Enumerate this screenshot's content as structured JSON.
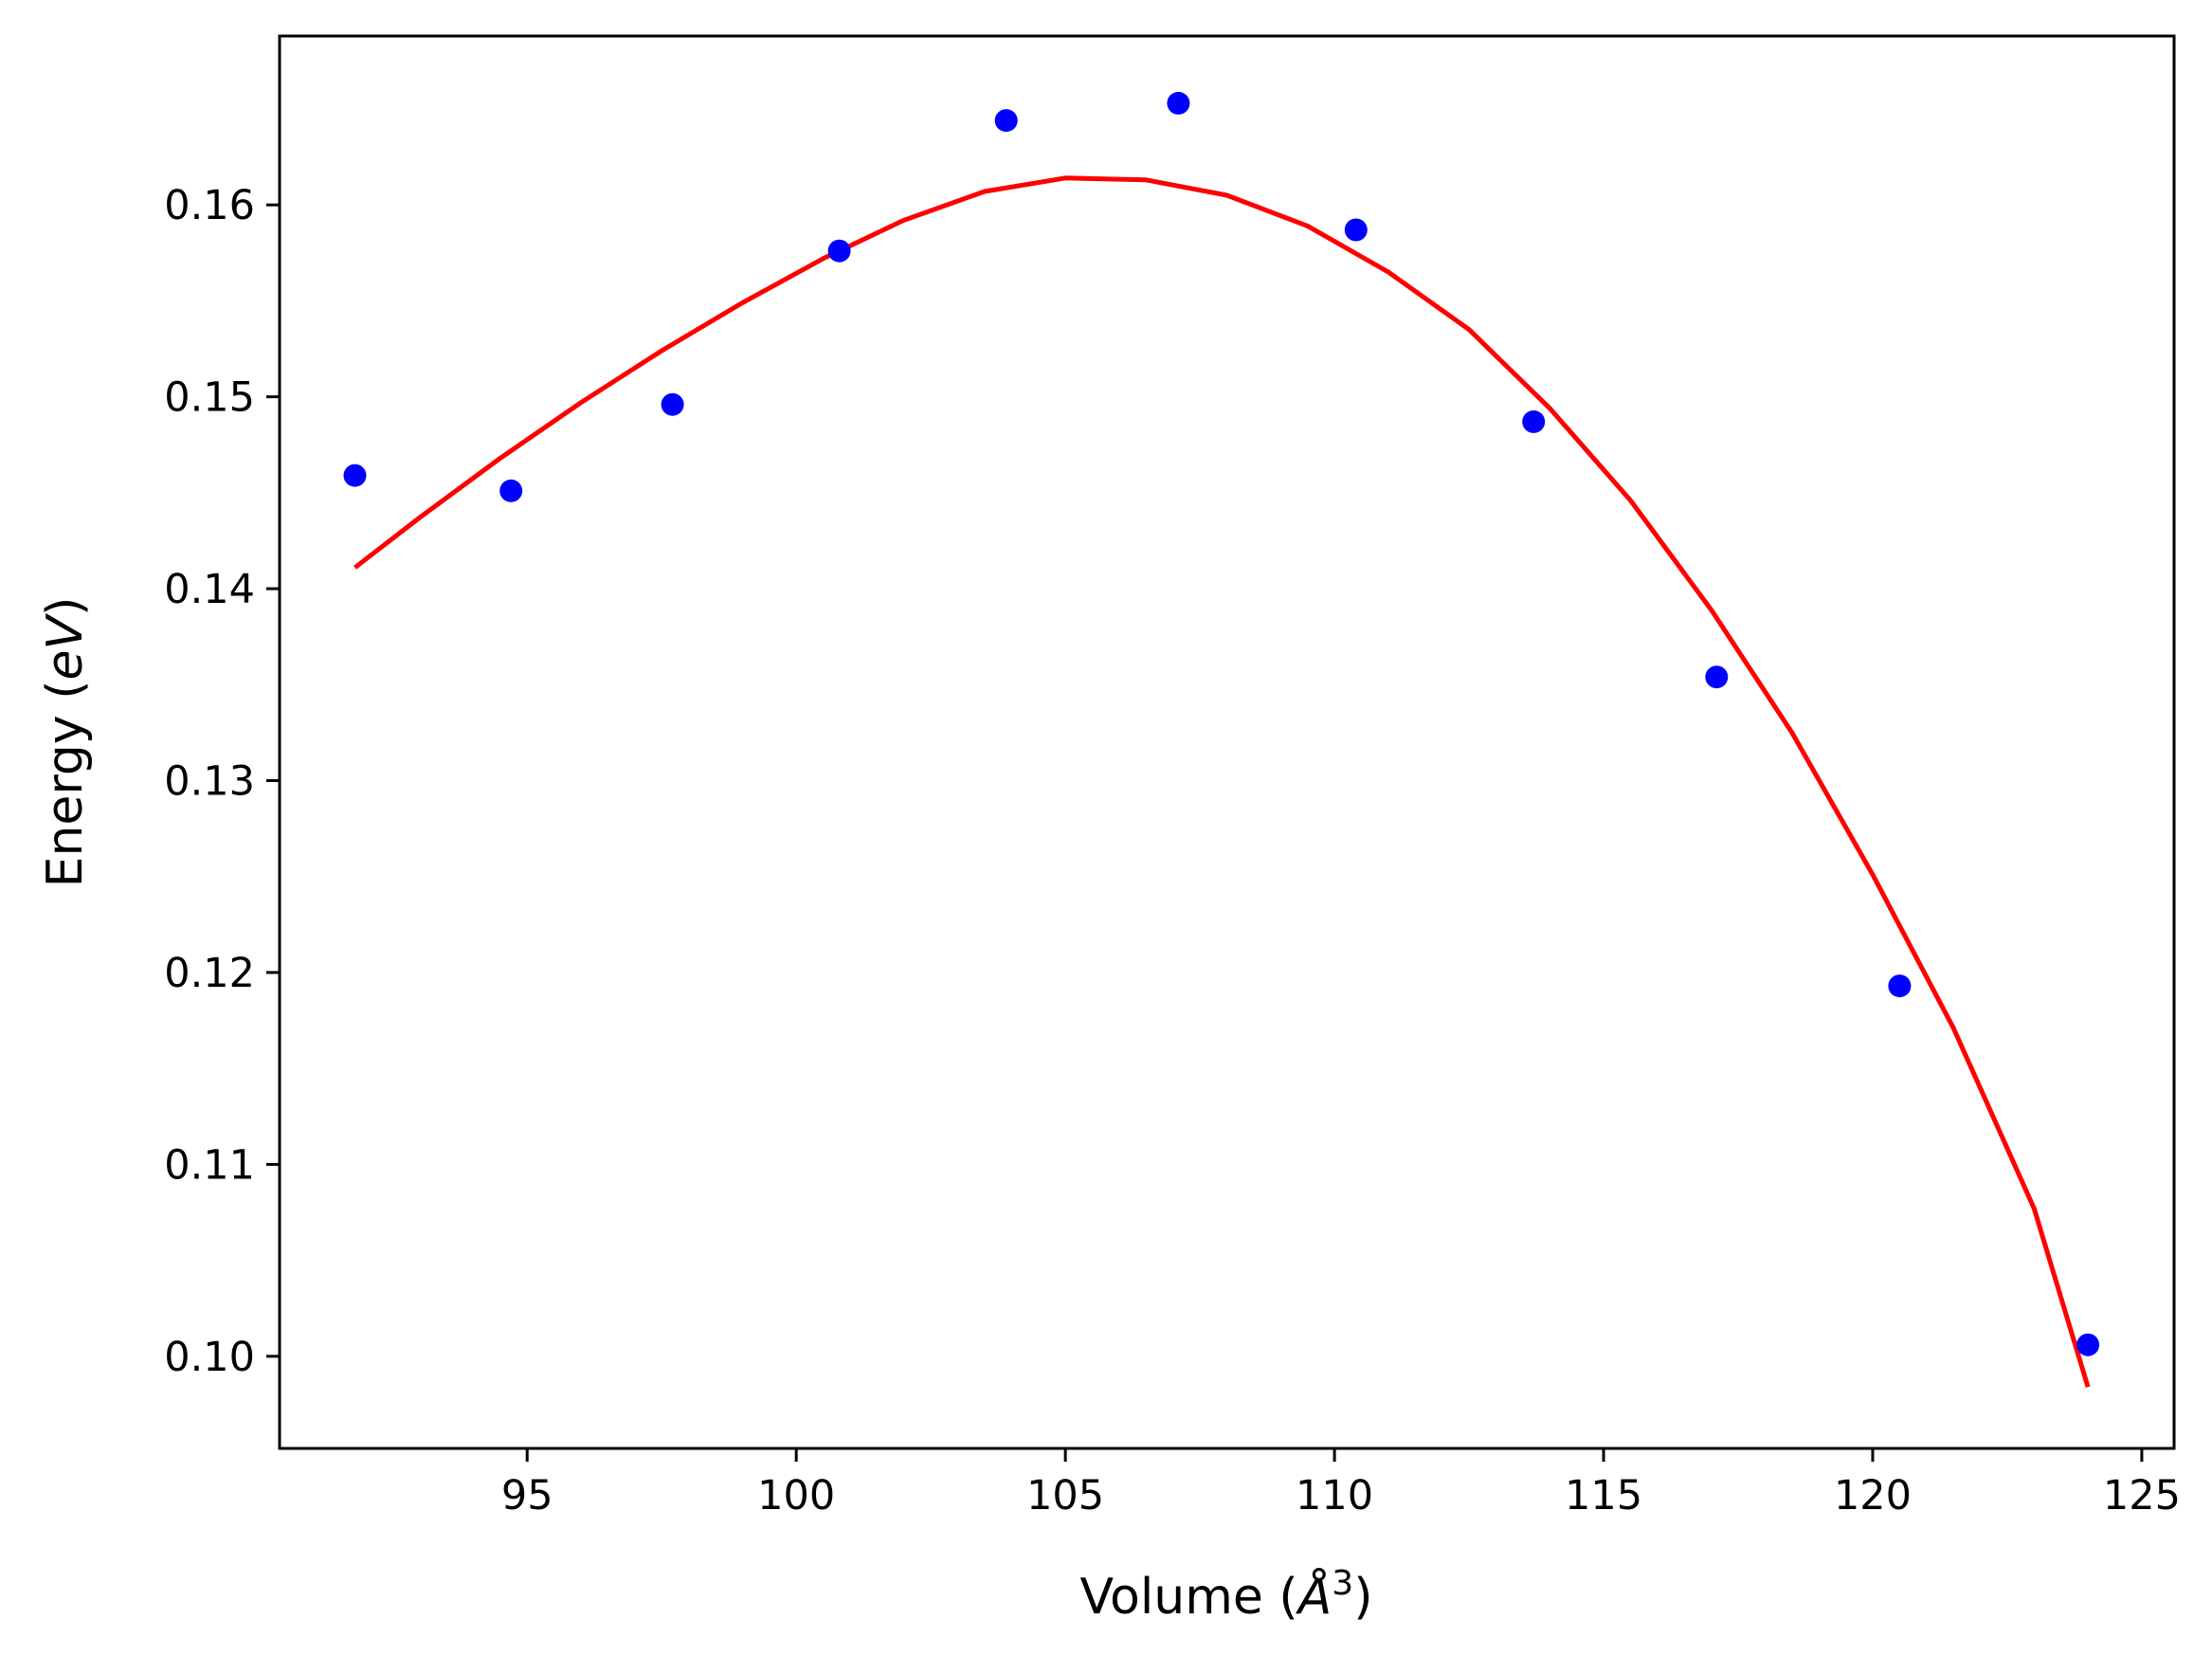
{
  "chart_data": {
    "type": "scatter",
    "title": "",
    "xlabel": "Volume (Å³)",
    "ylabel": "Energy (eV)",
    "xlabel_parts": {
      "prefix": "Volume (",
      "symbol": "Å",
      "sup": "3",
      "suffix": ")"
    },
    "ylabel_parts": {
      "prefix": "Energy (",
      "symbol": "eV",
      "suffix": ")"
    },
    "xlim": [
      90.4,
      125.6
    ],
    "ylim": [
      0.0952,
      0.1688
    ],
    "xticks": [
      95,
      100,
      105,
      110,
      115,
      120,
      125
    ],
    "yticks": [
      0.1,
      0.11,
      0.12,
      0.13,
      0.14,
      0.15,
      0.16
    ],
    "xtick_labels": [
      "95",
      "100",
      "105",
      "110",
      "115",
      "120",
      "125"
    ],
    "ytick_labels": [
      "0.10",
      "0.11",
      "0.12",
      "0.13",
      "0.14",
      "0.15",
      "0.16"
    ],
    "grid": false,
    "series": [
      {
        "kind": "scatter",
        "color": "#0000ff",
        "x": [
          91.8,
          94.7,
          97.7,
          100.8,
          103.9,
          107.1,
          110.4,
          113.7,
          117.1,
          120.5,
          124.0
        ],
        "y": [
          0.1459,
          0.1451,
          0.1496,
          0.1576,
          0.1644,
          0.1653,
          0.1587,
          0.1487,
          0.1354,
          0.1193,
          0.1006
        ]
      },
      {
        "kind": "line",
        "color": "#ff0000",
        "x": [
          91.8,
          93.0,
          94.5,
          96.0,
          97.5,
          99.0,
          100.5,
          102.0,
          103.5,
          105.0,
          106.5,
          108.0,
          109.5,
          111.0,
          112.5,
          114.0,
          115.5,
          117.0,
          118.5,
          120.0,
          121.5,
          123.0,
          124.0
        ],
        "y": [
          0.1411,
          0.1437,
          0.1468,
          0.1497,
          0.1524,
          0.1549,
          0.1572,
          0.1592,
          0.1607,
          0.1614,
          0.1613,
          0.1605,
          0.1589,
          0.1565,
          0.1535,
          0.1494,
          0.1446,
          0.1389,
          0.1325,
          0.1251,
          0.1171,
          0.1077,
          0.0984
        ]
      }
    ]
  }
}
